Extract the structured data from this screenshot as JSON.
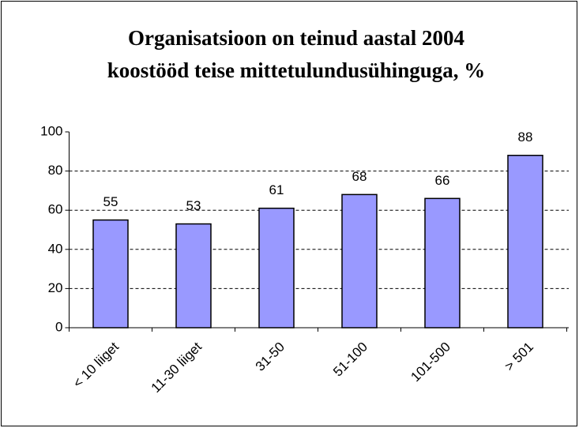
{
  "chart_data": {
    "type": "bar",
    "title": [
      "Organisatsioon on teinud aastal 2004",
      "koostööd teise mittetulundusühinguga, %"
    ],
    "categories": [
      "< 10 liiget",
      "11-30 liiget",
      "31-50",
      "51-100",
      "101-500",
      "> 501"
    ],
    "values": [
      55,
      53,
      61,
      68,
      66,
      88
    ],
    "color": "#9999ff",
    "ylim": [
      0,
      100
    ],
    "yticks": [
      0,
      20,
      40,
      60,
      80,
      100
    ],
    "grid": true
  }
}
